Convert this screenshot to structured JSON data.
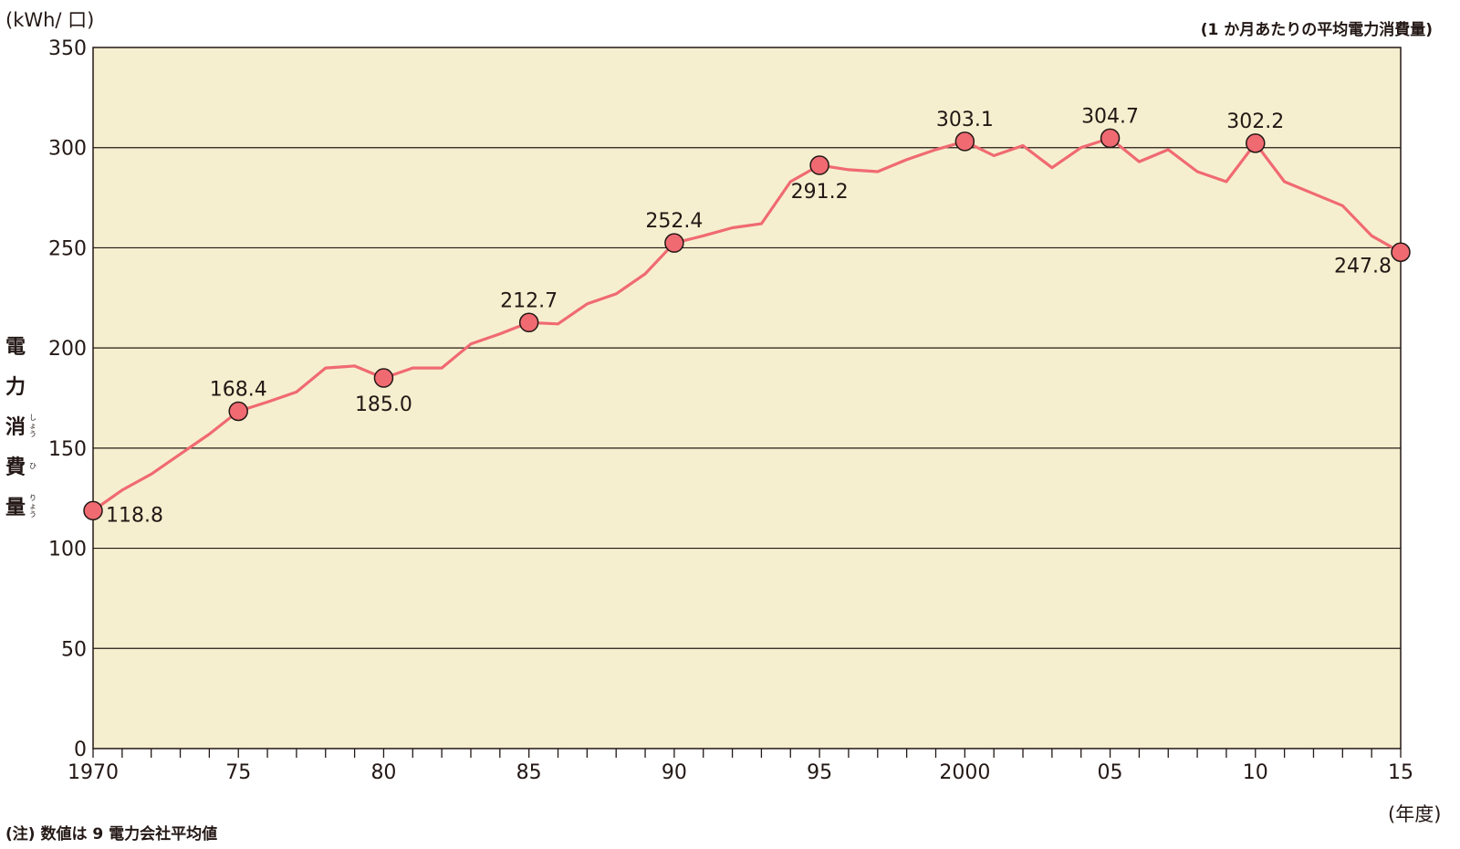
{
  "unit_label": "(kWh/ 口)",
  "subtitle": "(1 か月あたりの平均電力消費量)",
  "note": "(注) 数値は 9 電力会社平均値",
  "x_unit_label": "(年度)",
  "y_title": [
    {
      "kanji": "電",
      "ruby": ""
    },
    {
      "kanji": "力",
      "ruby": ""
    },
    {
      "kanji": "消",
      "ruby": "しょう"
    },
    {
      "kanji": "費",
      "ruby": "ひ"
    },
    {
      "kanji": "量",
      "ruby": "りょう"
    }
  ],
  "colors": {
    "background": "#f6efcf",
    "line": "#f06a72",
    "marker": "#f06a72",
    "axis": "#231815"
  },
  "chart_data": {
    "type": "line",
    "x": [
      1970,
      1971,
      1972,
      1973,
      1974,
      1975,
      1976,
      1977,
      1978,
      1979,
      1980,
      1981,
      1982,
      1983,
      1984,
      1985,
      1986,
      1987,
      1988,
      1989,
      1990,
      1991,
      1992,
      1993,
      1994,
      1995,
      1996,
      1997,
      1998,
      1999,
      2000,
      2001,
      2002,
      2003,
      2004,
      2005,
      2006,
      2007,
      2008,
      2009,
      2010,
      2011,
      2012,
      2013,
      2014,
      2015
    ],
    "values": [
      118.8,
      129,
      137,
      147,
      157,
      168.4,
      173,
      178,
      190,
      191,
      185.0,
      190,
      190,
      202,
      207,
      212.7,
      212,
      222,
      227,
      237,
      252.4,
      256,
      260,
      262,
      283,
      291.2,
      289,
      288,
      294,
      299,
      303.1,
      296,
      301,
      290,
      300,
      304.7,
      293,
      299,
      288,
      283,
      302.2,
      283,
      277,
      271,
      256,
      247.8
    ],
    "xlim": [
      1970,
      2015
    ],
    "ylim": [
      0,
      350
    ],
    "y_ticks": [
      0,
      50,
      100,
      150,
      200,
      250,
      300,
      350
    ],
    "x_tick_years": [
      1970,
      1975,
      1980,
      1985,
      1990,
      1995,
      2000,
      2005,
      2010,
      2015
    ],
    "x_tick_labels": [
      "1970",
      "75",
      "80",
      "85",
      "90",
      "95",
      "2000",
      "05",
      "10",
      "15"
    ],
    "highlighted_points": [
      {
        "x": 1970,
        "label": "118.8",
        "label_pos": "below-right"
      },
      {
        "x": 1975,
        "label": "168.4",
        "label_pos": "above"
      },
      {
        "x": 1980,
        "label": "185.0",
        "label_pos": "below"
      },
      {
        "x": 1985,
        "label": "212.7",
        "label_pos": "above"
      },
      {
        "x": 1990,
        "label": "252.4",
        "label_pos": "above"
      },
      {
        "x": 1995,
        "label": "291.2",
        "label_pos": "below"
      },
      {
        "x": 2000,
        "label": "303.1",
        "label_pos": "above"
      },
      {
        "x": 2005,
        "label": "304.7",
        "label_pos": "above"
      },
      {
        "x": 2010,
        "label": "302.2",
        "label_pos": "above"
      },
      {
        "x": 2015,
        "label": "247.8",
        "label_pos": "below-left"
      }
    ],
    "grid": true
  }
}
